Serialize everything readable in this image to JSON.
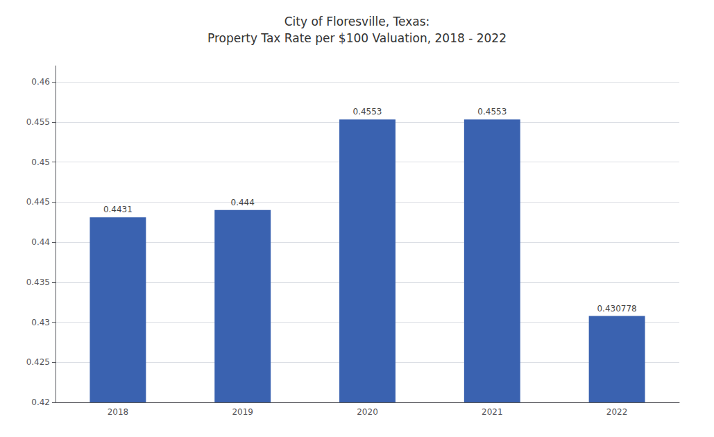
{
  "chart_data": {
    "type": "bar",
    "title": "City of Floresville, Texas:\nProperty Tax Rate per $100 Valuation, 2018 - 2022",
    "categories": [
      "2018",
      "2019",
      "2020",
      "2021",
      "2022"
    ],
    "values": [
      0.4431,
      0.444,
      0.4553,
      0.4553,
      0.430778
    ],
    "color": "#3A62B0",
    "ylim": [
      0.42,
      0.462
    ],
    "yticks": [
      0.42,
      0.425,
      0.43,
      0.435,
      0.44,
      0.445,
      0.45,
      0.455,
      0.46
    ],
    "grid": true,
    "data_labels": true
  }
}
